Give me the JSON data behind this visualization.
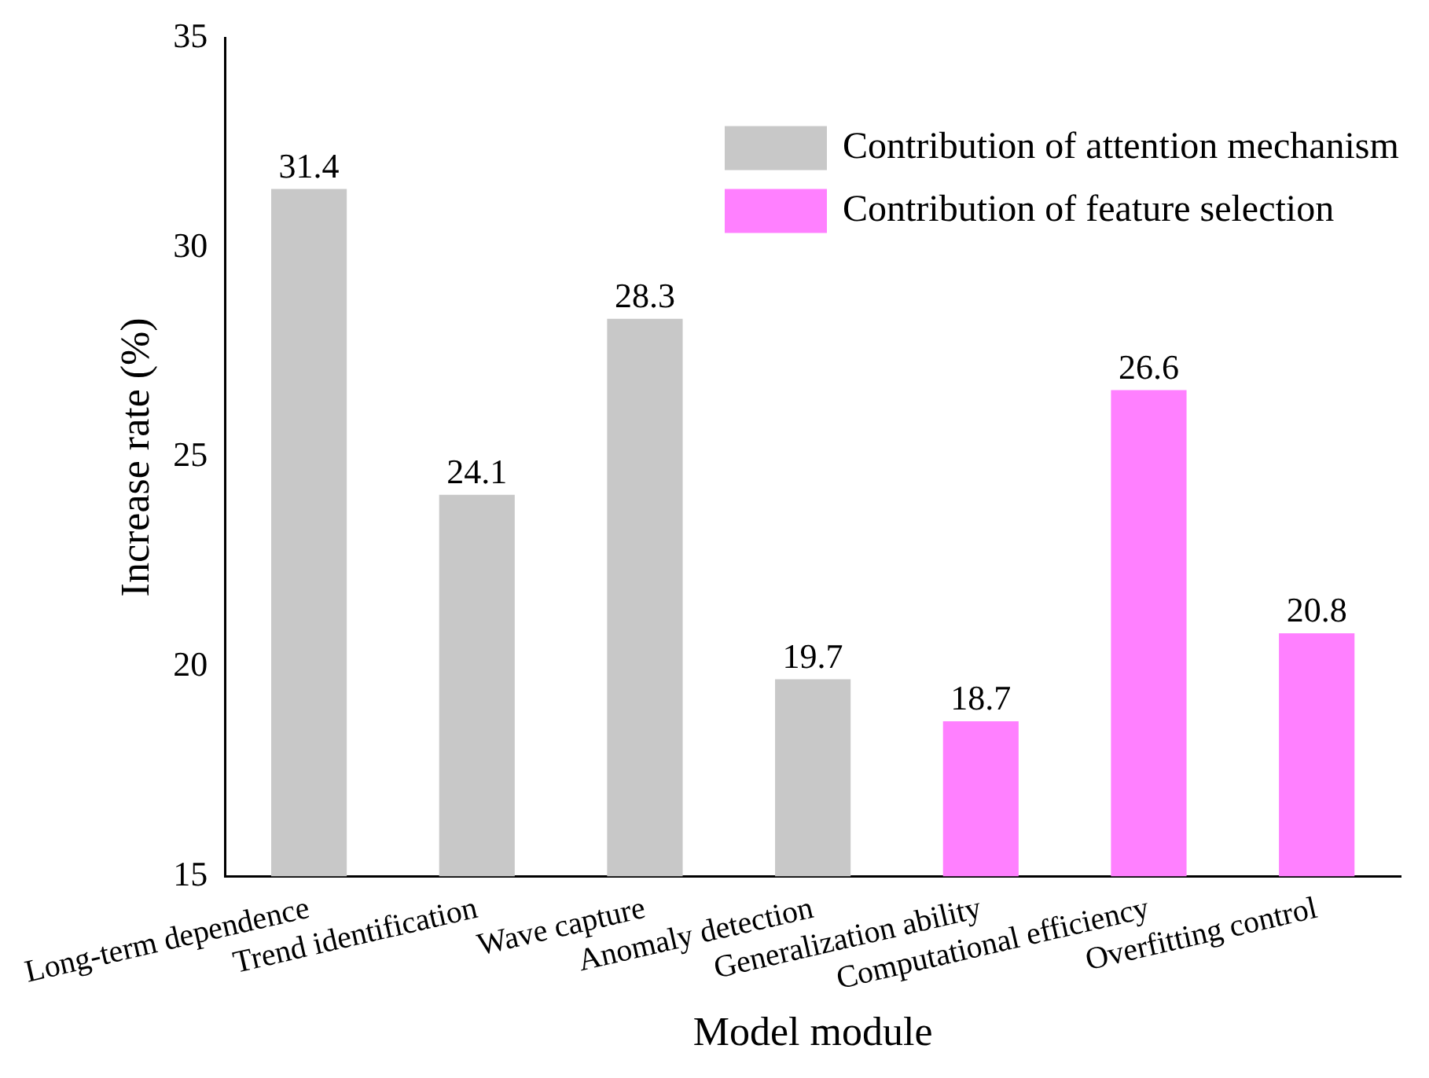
{
  "chart_data": {
    "type": "bar",
    "xlabel": "Model module",
    "ylabel": "Increase rate (%)",
    "categories": [
      "Long-term dependence",
      "Trend identification",
      "Wave capture",
      "Anomaly detection",
      "Generalization ability",
      "Computational efficiency",
      "Overfitting control"
    ],
    "series": [
      {
        "name": "Contribution of attention mechanism",
        "color": "#c8c8c8",
        "values": [
          31.4,
          24.1,
          28.3,
          19.7,
          null,
          null,
          null
        ]
      },
      {
        "name": "Contribution of feature selection",
        "color": "#ff80ff",
        "values": [
          null,
          null,
          null,
          null,
          18.7,
          26.6,
          20.8
        ]
      }
    ],
    "ylim": [
      15,
      35
    ],
    "yticks": [
      15,
      20,
      25,
      30,
      35
    ],
    "grid": false,
    "legend": "top right",
    "data_labels": true
  }
}
